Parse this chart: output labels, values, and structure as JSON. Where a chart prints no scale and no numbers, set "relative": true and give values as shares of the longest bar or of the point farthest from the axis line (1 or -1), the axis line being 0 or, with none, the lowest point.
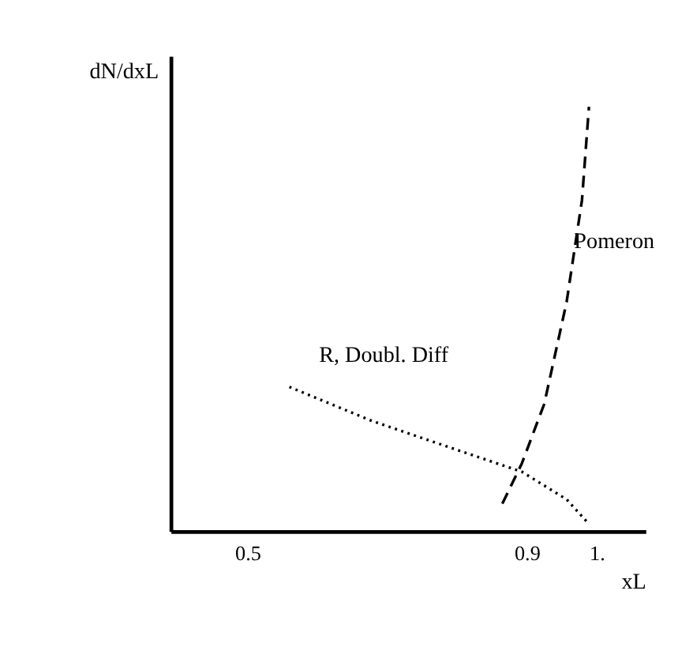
{
  "chart_data": {
    "type": "line",
    "relative": true,
    "xlabel": "xL",
    "ylabel": "dN/dxL",
    "xlim": [
      0.39,
      1.07
    ],
    "xticks": [
      0.5,
      0.9,
      {
        "value": 1,
        "label": "1."
      }
    ],
    "grid": false,
    "marker": "none",
    "series": [
      {
        "name": "Pomeron",
        "color": "#000000",
        "line_style": "dashed",
        "x": [
          0.865,
          0.893,
          0.925,
          0.957,
          0.979,
          0.989
        ],
        "values": [
          0.065,
          0.16,
          0.3,
          0.54,
          0.78,
          1
        ]
      },
      {
        "name": "R, Doubl. Diff",
        "color": "#000000",
        "line_style": "dotted",
        "x": [
          0.56,
          0.678,
          0.785,
          0.893,
          0.957,
          0.989
        ],
        "values": [
          0.34,
          0.26,
          0.2,
          0.14,
          0.075,
          0.017
        ]
      }
    ]
  }
}
